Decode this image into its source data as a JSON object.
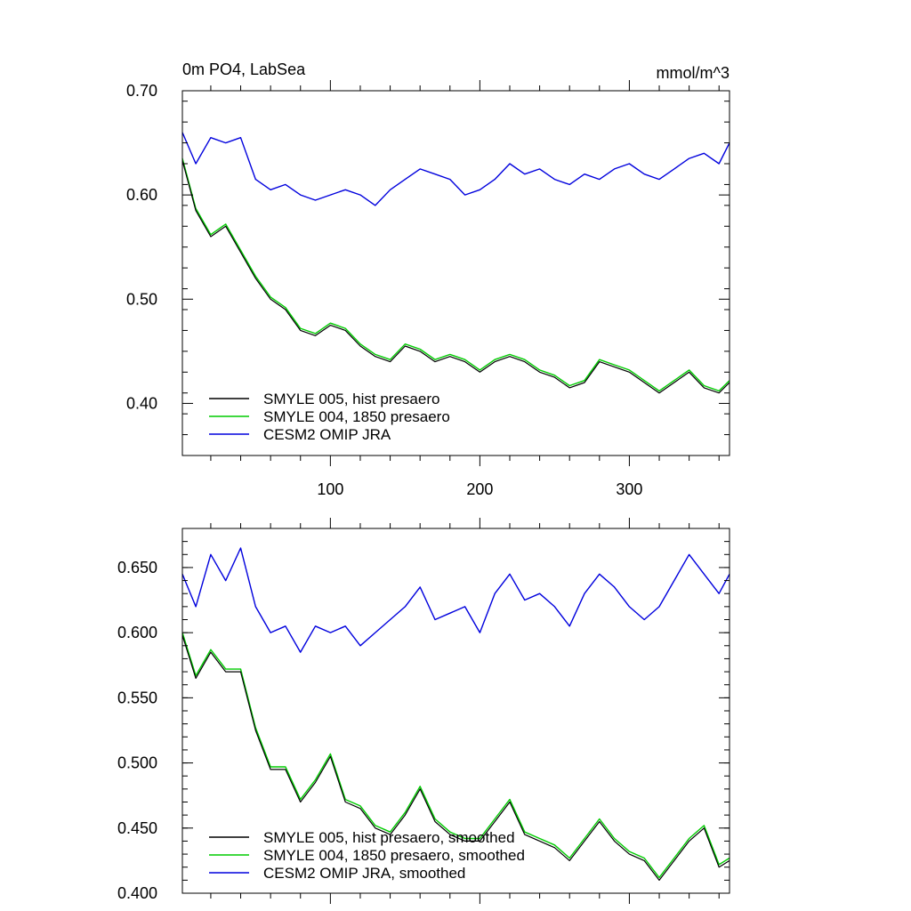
{
  "chart_data": [
    {
      "type": "line",
      "title_left": "0m PO4, LabSea",
      "title_right": "mmol/m^3",
      "xlim": [
        1,
        367
      ],
      "ylim": [
        0.35,
        0.7
      ],
      "yticks": [
        0.4,
        0.5,
        0.6,
        0.7
      ],
      "ytick_labels": [
        "0.40",
        "0.50",
        "0.60",
        "0.70"
      ],
      "xticks": [
        100,
        200,
        300
      ],
      "xtick_labels": [
        "100",
        "200",
        "300"
      ],
      "legend_position": "bottom-left",
      "series": [
        {
          "name": "SMYLE 005, hist presaero",
          "color": "#000000",
          "x": [
            1,
            10,
            20,
            30,
            40,
            50,
            60,
            70,
            80,
            90,
            100,
            110,
            120,
            130,
            140,
            150,
            160,
            170,
            180,
            190,
            200,
            210,
            220,
            230,
            240,
            250,
            260,
            270,
            280,
            290,
            300,
            310,
            320,
            330,
            340,
            350,
            360,
            367
          ],
          "y": [
            0.633,
            0.585,
            0.56,
            0.57,
            0.545,
            0.52,
            0.5,
            0.49,
            0.47,
            0.465,
            0.475,
            0.47,
            0.455,
            0.445,
            0.44,
            0.455,
            0.45,
            0.44,
            0.445,
            0.44,
            0.43,
            0.44,
            0.445,
            0.44,
            0.43,
            0.425,
            0.415,
            0.42,
            0.44,
            0.435,
            0.43,
            0.42,
            0.41,
            0.42,
            0.43,
            0.415,
            0.41,
            0.42
          ]
        },
        {
          "name": "SMYLE 004, 1850 presaero",
          "color": "#00cc00",
          "x": [
            1,
            10,
            20,
            30,
            40,
            50,
            60,
            70,
            80,
            90,
            100,
            110,
            120,
            130,
            140,
            150,
            160,
            170,
            180,
            190,
            200,
            210,
            220,
            230,
            240,
            250,
            260,
            270,
            280,
            290,
            300,
            310,
            320,
            330,
            340,
            350,
            360,
            367
          ],
          "y": [
            0.635,
            0.587,
            0.562,
            0.572,
            0.547,
            0.522,
            0.502,
            0.492,
            0.472,
            0.467,
            0.477,
            0.472,
            0.457,
            0.447,
            0.442,
            0.457,
            0.452,
            0.442,
            0.447,
            0.442,
            0.432,
            0.442,
            0.447,
            0.442,
            0.432,
            0.427,
            0.417,
            0.422,
            0.442,
            0.437,
            0.432,
            0.422,
            0.412,
            0.422,
            0.432,
            0.417,
            0.412,
            0.422
          ]
        },
        {
          "name": "CESM2 OMIP JRA",
          "color": "#0000dd",
          "x": [
            1,
            10,
            20,
            30,
            40,
            50,
            60,
            70,
            80,
            90,
            100,
            110,
            120,
            130,
            140,
            150,
            160,
            170,
            180,
            190,
            200,
            210,
            220,
            230,
            240,
            250,
            260,
            270,
            280,
            290,
            300,
            310,
            320,
            330,
            340,
            350,
            360,
            367
          ],
          "y": [
            0.66,
            0.63,
            0.655,
            0.65,
            0.655,
            0.615,
            0.605,
            0.61,
            0.6,
            0.595,
            0.6,
            0.605,
            0.6,
            0.59,
            0.605,
            0.615,
            0.625,
            0.62,
            0.615,
            0.6,
            0.605,
            0.615,
            0.63,
            0.62,
            0.625,
            0.615,
            0.61,
            0.62,
            0.615,
            0.625,
            0.63,
            0.62,
            0.615,
            0.625,
            0.635,
            0.64,
            0.63,
            0.65
          ]
        }
      ]
    },
    {
      "type": "line",
      "xlim": [
        1,
        367
      ],
      "ylim": [
        0.4,
        0.68
      ],
      "yticks": [
        0.4,
        0.45,
        0.5,
        0.55,
        0.6,
        0.65
      ],
      "ytick_labels": [
        "0.400",
        "0.450",
        "0.500",
        "0.550",
        "0.600",
        "0.650"
      ],
      "legend_position": "bottom-left",
      "series": [
        {
          "name": "SMYLE 005, hist presaero, smoothed",
          "color": "#000000",
          "x": [
            1,
            10,
            20,
            30,
            40,
            50,
            60,
            70,
            80,
            90,
            100,
            110,
            120,
            130,
            140,
            150,
            160,
            170,
            180,
            190,
            200,
            210,
            220,
            230,
            240,
            250,
            260,
            270,
            280,
            290,
            300,
            310,
            320,
            330,
            340,
            350,
            360,
            367
          ],
          "y": [
            0.598,
            0.565,
            0.585,
            0.57,
            0.57,
            0.525,
            0.495,
            0.495,
            0.47,
            0.485,
            0.505,
            0.47,
            0.465,
            0.45,
            0.445,
            0.46,
            0.48,
            0.455,
            0.445,
            0.44,
            0.44,
            0.455,
            0.47,
            0.445,
            0.44,
            0.435,
            0.425,
            0.44,
            0.455,
            0.44,
            0.43,
            0.425,
            0.41,
            0.425,
            0.44,
            0.45,
            0.42,
            0.425
          ]
        },
        {
          "name": "SMYLE 004, 1850 presaero, smoothed",
          "color": "#00cc00",
          "x": [
            1,
            10,
            20,
            30,
            40,
            50,
            60,
            70,
            80,
            90,
            100,
            110,
            120,
            130,
            140,
            150,
            160,
            170,
            180,
            190,
            200,
            210,
            220,
            230,
            240,
            250,
            260,
            270,
            280,
            290,
            300,
            310,
            320,
            330,
            340,
            350,
            360,
            367
          ],
          "y": [
            0.6,
            0.567,
            0.587,
            0.572,
            0.572,
            0.527,
            0.497,
            0.497,
            0.472,
            0.487,
            0.507,
            0.472,
            0.467,
            0.452,
            0.447,
            0.462,
            0.482,
            0.457,
            0.447,
            0.442,
            0.442,
            0.457,
            0.472,
            0.447,
            0.442,
            0.437,
            0.427,
            0.442,
            0.457,
            0.442,
            0.432,
            0.427,
            0.412,
            0.427,
            0.442,
            0.452,
            0.422,
            0.427
          ]
        },
        {
          "name": "CESM2 OMIP JRA, smoothed",
          "color": "#0000dd",
          "x": [
            1,
            10,
            20,
            30,
            40,
            50,
            60,
            70,
            80,
            90,
            100,
            110,
            120,
            130,
            140,
            150,
            160,
            170,
            180,
            190,
            200,
            210,
            220,
            230,
            240,
            250,
            260,
            270,
            280,
            290,
            300,
            310,
            320,
            330,
            340,
            350,
            360,
            367
          ],
          "y": [
            0.645,
            0.62,
            0.66,
            0.64,
            0.665,
            0.62,
            0.6,
            0.605,
            0.585,
            0.605,
            0.6,
            0.605,
            0.59,
            0.6,
            0.61,
            0.62,
            0.635,
            0.61,
            0.615,
            0.62,
            0.6,
            0.63,
            0.645,
            0.625,
            0.63,
            0.62,
            0.605,
            0.63,
            0.645,
            0.635,
            0.62,
            0.61,
            0.62,
            0.64,
            0.66,
            0.645,
            0.63,
            0.645
          ]
        }
      ]
    }
  ]
}
